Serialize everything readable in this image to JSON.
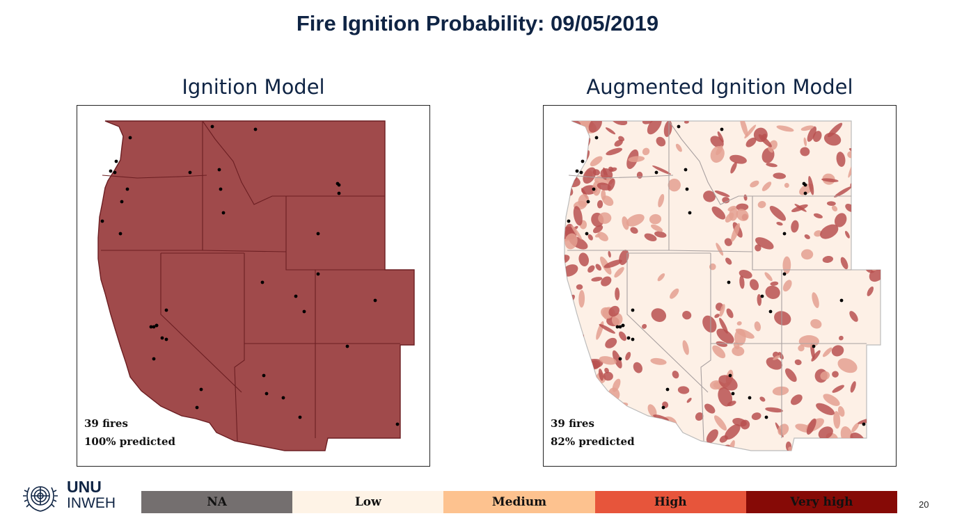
{
  "slide": {
    "title": "Fire Ignition Probability: 09/05/2019",
    "page_number": "20"
  },
  "panels": [
    {
      "title": "Ignition Model",
      "stats_fires": "39 fires",
      "stats_predicted": "100% predicted",
      "fill_level": "Very high"
    },
    {
      "title": "Augmented Ignition Model",
      "stats_fires": "39 fires",
      "stats_predicted": "82% predicted",
      "fill_level": "mixed"
    }
  ],
  "logo": {
    "line1": "UNU",
    "line2": "INWEH",
    "icon": "un-emblem-icon"
  },
  "legend": [
    {
      "label": "NA",
      "color": "#746f6f"
    },
    {
      "label": "Low",
      "color": "#fef3e6"
    },
    {
      "label": "Medium",
      "color": "#fdc28f"
    },
    {
      "label": "High",
      "color": "#e7553b"
    },
    {
      "label": "Very high",
      "color": "#860a06"
    }
  ],
  "map_colors": {
    "uniform_fill": "#a04a4b",
    "state_border": "#6b1e22",
    "fire_dot": "#000000",
    "aug_light": "#fdf0e6",
    "aug_mid": "#e4a090",
    "aug_dark": "#b85150"
  }
}
